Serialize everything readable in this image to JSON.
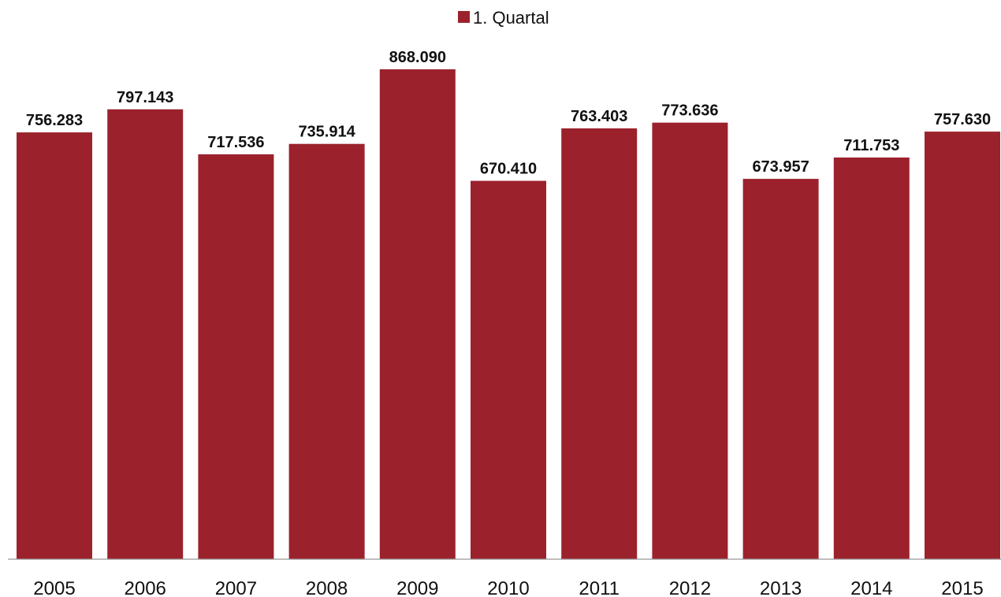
{
  "chart_data": {
    "type": "bar",
    "title": "",
    "xlabel": "",
    "ylabel": "",
    "categories": [
      "2005",
      "2006",
      "2007",
      "2008",
      "2009",
      "2010",
      "2011",
      "2012",
      "2013",
      "2014",
      "2015"
    ],
    "series": [
      {
        "name": "1. Quartal",
        "color": "#9b222c",
        "values": [
          756283,
          797143,
          717536,
          735914,
          868090,
          670410,
          763403,
          773636,
          673957,
          711753,
          757630
        ],
        "labels": [
          "756.283",
          "797.143",
          "717.536",
          "735.914",
          "868.090",
          "670.410",
          "763.403",
          "773.636",
          "673.957",
          "711.753",
          "757.630"
        ]
      }
    ],
    "ylim": [
      0,
      900000
    ],
    "grid": false,
    "legend": "top-center",
    "data_labels": true
  }
}
